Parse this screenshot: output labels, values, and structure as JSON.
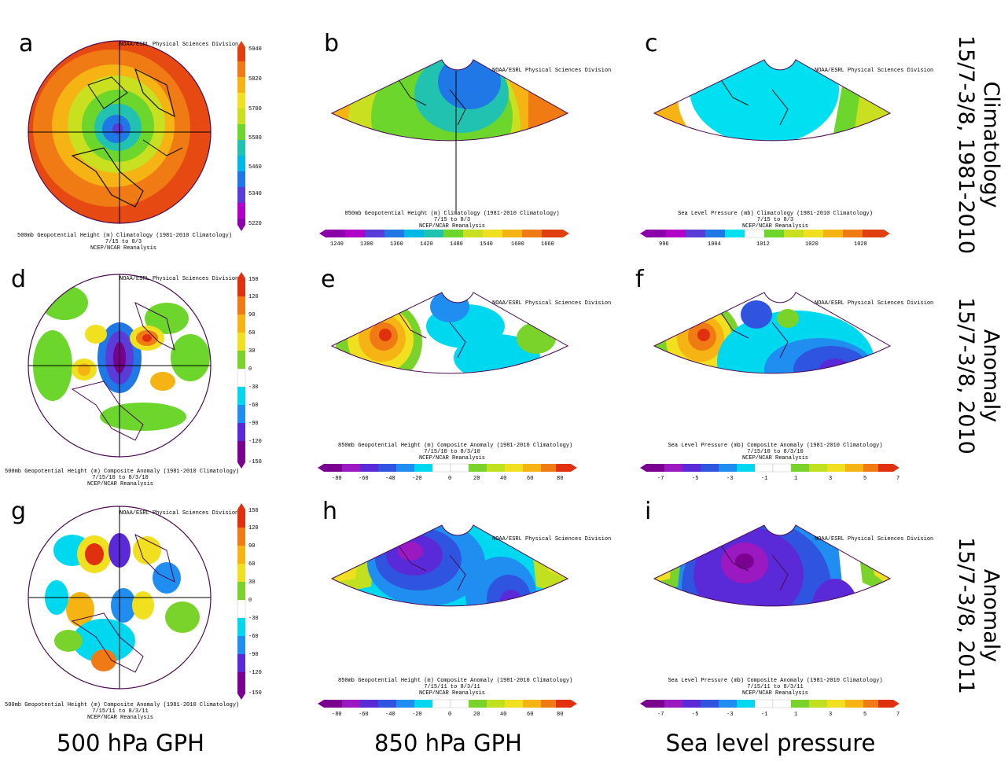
{
  "panels": [
    {
      "id": "a",
      "letter": "a",
      "credit": "NOAA/ESRL Physical Sciences Division",
      "caption": [
        "500mb Geopotential Height (m) Climatology (1981-2010 Climatology)",
        "7/15 to 8/3",
        "NCEP/NCAR Reanalysis"
      ],
      "colorbar": {
        "orientation": "vertical",
        "ticks": [
          "5940",
          "5820",
          "5700",
          "5580",
          "5460",
          "5340",
          "5220"
        ]
      }
    },
    {
      "id": "b",
      "letter": "b",
      "credit": "NOAA/ESRL Physical Sciences Division",
      "caption": [
        "850mb Geopotential Height (m) Climatology (1981-2010 Climatology)",
        "7/15 to 8/3",
        "NCEP/NCAR Reanalysis"
      ],
      "colorbar": {
        "orientation": "horizontal",
        "ticks": [
          "1240",
          "1300",
          "1360",
          "1420",
          "1480",
          "1540",
          "1600",
          "1660"
        ]
      }
    },
    {
      "id": "c",
      "letter": "c",
      "credit": "NOAA/ESRL Physical Sciences Division",
      "caption": [
        "Sea Level Pressure (mb) Climatology (1981-2010 Climatology)",
        "7/15 to 8/3",
        "NCEP/NCAR Reanalysis"
      ],
      "colorbar": {
        "orientation": "horizontal",
        "ticks": [
          "996",
          "1004",
          "1012",
          "1020",
          "1028"
        ]
      }
    },
    {
      "id": "d",
      "letter": "d",
      "credit": "NOAA/ESRL Physical Sciences Division",
      "caption": [
        "500mb Geopotential Height (m) Composite Anomaly (1981-2010 Climatology)",
        "7/15/10 to 8/3/10",
        "NCEP/NCAR Reanalysis"
      ],
      "colorbar": {
        "orientation": "vertical",
        "ticks": [
          "150",
          "120",
          "90",
          "60",
          "30",
          "0",
          "-30",
          "-60",
          "-90",
          "-120",
          "-150"
        ]
      }
    },
    {
      "id": "e",
      "letter": "e",
      "credit": "NOAA/ESRL Physical Sciences Division",
      "caption": [
        "850mb Geopotential Height (m) Composite Anomaly (1981-2010 Climatology)",
        "7/15/10 to 8/3/10",
        "NCEP/NCAR Reanalysis"
      ],
      "colorbar": {
        "orientation": "horizontal",
        "ticks": [
          "-80",
          "-60",
          "-40",
          "-20",
          "0",
          "20",
          "40",
          "60",
          "80"
        ]
      }
    },
    {
      "id": "f",
      "letter": "f",
      "credit": "NOAA/ESRL Physical Sciences Division",
      "caption": [
        "Sea Level Pressure (mb) Composite Anomaly (1981-2010 Climatology)",
        "7/15/10 to 8/3/10",
        "NCEP/NCAR Reanalysis"
      ],
      "colorbar": {
        "orientation": "horizontal",
        "ticks": [
          "-7",
          "-5",
          "-3",
          "-1",
          "1",
          "3",
          "5",
          "7"
        ]
      }
    },
    {
      "id": "g",
      "letter": "g",
      "credit": "NOAA/ESRL Physical Sciences Division",
      "caption": [
        "500mb Geopotential Height (m) Composite Anomaly (1981-2010 Climatology)",
        "7/15/11 to 8/3/11",
        "NCEP/NCAR Reanalysis"
      ],
      "colorbar": {
        "orientation": "vertical",
        "ticks": [
          "150",
          "120",
          "90",
          "60",
          "30",
          "0",
          "-30",
          "-60",
          "-90",
          "-120",
          "-150"
        ]
      }
    },
    {
      "id": "h",
      "letter": "h",
      "credit": "NOAA/ESRL Physical Sciences Division",
      "caption": [
        "850mb Geopotential Height (m) Composite Anomaly (1981-2010 Climatology)",
        "7/15/11 to 8/3/11",
        "NCEP/NCAR Reanalysis"
      ],
      "colorbar": {
        "orientation": "horizontal",
        "ticks": [
          "-80",
          "-60",
          "-40",
          "-20",
          "0",
          "20",
          "40",
          "60",
          "80"
        ]
      }
    },
    {
      "id": "i",
      "letter": "i",
      "credit": "NOAA/ESRL Physical Sciences Division",
      "caption": [
        "Sea Level Pressure (mb) Composite Anomaly (1981-2010 Climatology)",
        "7/15/11 to 8/3/11",
        "NCEP/NCAR Reanalysis"
      ],
      "colorbar": {
        "orientation": "horizontal",
        "ticks": [
          "-7",
          "-5",
          "-3",
          "-1",
          "1",
          "3",
          "5",
          "7"
        ]
      }
    }
  ],
  "row_labels": [
    {
      "line1": "Climatology",
      "line2": "15/7-3/8,  1981-2010"
    },
    {
      "line1": "Anomaly",
      "line2": "15/7-3/8, 2010"
    },
    {
      "line1": "Anomaly",
      "line2": "15/7-3/8, 2011"
    }
  ],
  "column_labels": [
    "500 hPa GPH",
    "850 hPa GPH",
    "Sea level pressure"
  ],
  "colors": {
    "clim_scale": [
      "#8b00a8",
      "#b000c8",
      "#5a3cd8",
      "#1f78e6",
      "#00b8e6",
      "#21c2b0",
      "#6dd62c",
      "#c8e020",
      "#f0e020",
      "#f5b414",
      "#f07a14",
      "#e04010"
    ],
    "anom_scale": [
      "#7a0090",
      "#9b19c0",
      "#5a2ad8",
      "#2f55e0",
      "#1f8ef0",
      "#00d8f0",
      "#ffffff",
      "#ffffff",
      "#7ad32a",
      "#c0e020",
      "#f0e020",
      "#f5b414",
      "#f07a14",
      "#e03010"
    ],
    "outline": "#4b0a52"
  }
}
